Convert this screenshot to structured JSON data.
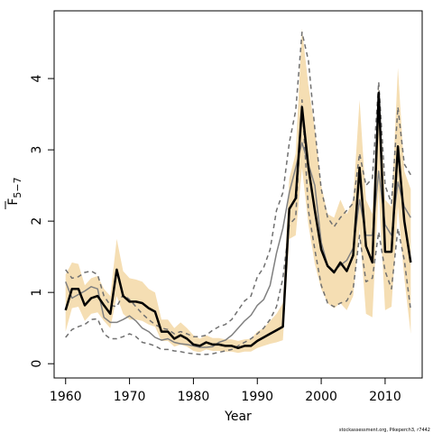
{
  "chart_data": {
    "type": "line",
    "xlabel": "Year",
    "ylabel_main": "F",
    "ylabel_sub": "5−7",
    "credit": "stockassessment.org, Pikeperch3, r7442",
    "xlim": [
      1958.2,
      2015.8
    ],
    "ylim": [
      -0.2,
      4.95
    ],
    "xticks": [
      1960,
      1970,
      1980,
      1990,
      2000,
      2010
    ],
    "yticks": [
      0,
      1,
      2,
      3,
      4
    ],
    "colors": {
      "band": "#f5deb3",
      "estimate": "#000000",
      "reference": "#808080",
      "reference_dashed": "#707070"
    },
    "x": [
      1960,
      1961,
      1962,
      1963,
      1964,
      1965,
      1966,
      1967,
      1968,
      1969,
      1970,
      1971,
      1972,
      1973,
      1974,
      1975,
      1976,
      1977,
      1978,
      1979,
      1980,
      1981,
      1982,
      1983,
      1984,
      1985,
      1986,
      1987,
      1988,
      1989,
      1990,
      1991,
      1992,
      1993,
      1994,
      1995,
      1996,
      1997,
      1998,
      1999,
      2000,
      2001,
      2002,
      2003,
      2004,
      2005,
      2006,
      2007,
      2008,
      2009,
      2010,
      2011,
      2012,
      2013,
      2014
    ],
    "series": [
      {
        "role": "estimate",
        "values": [
          0.75,
          1.05,
          1.05,
          0.82,
          0.92,
          0.95,
          0.82,
          0.7,
          1.32,
          0.95,
          0.87,
          0.87,
          0.85,
          0.78,
          0.73,
          0.45,
          0.45,
          0.35,
          0.4,
          0.35,
          0.27,
          0.25,
          0.3,
          0.27,
          0.27,
          0.25,
          0.25,
          0.22,
          0.25,
          0.25,
          0.32,
          0.37,
          0.42,
          0.47,
          0.52,
          2.17,
          2.32,
          3.6,
          2.75,
          2.15,
          1.6,
          1.37,
          1.28,
          1.42,
          1.3,
          1.52,
          2.75,
          1.65,
          1.42,
          3.8,
          1.57,
          1.57,
          3.05,
          2.0,
          1.42
        ]
      },
      {
        "role": "band_upper",
        "values": [
          1.25,
          1.42,
          1.4,
          1.1,
          1.2,
          1.23,
          1.05,
          0.95,
          1.75,
          1.3,
          1.2,
          1.18,
          1.15,
          1.05,
          1.0,
          0.62,
          0.62,
          0.5,
          0.58,
          0.5,
          0.4,
          0.35,
          0.4,
          0.36,
          0.36,
          0.34,
          0.34,
          0.32,
          0.34,
          0.35,
          0.45,
          0.5,
          0.6,
          0.7,
          0.85,
          2.6,
          2.95,
          4.7,
          3.9,
          3.3,
          2.5,
          2.1,
          2.05,
          2.3,
          2.1,
          2.3,
          3.7,
          2.3,
          2.1,
          3.95,
          2.3,
          2.2,
          4.15,
          2.7,
          2.45
        ]
      },
      {
        "role": "band_lower",
        "values": [
          0.45,
          0.78,
          0.8,
          0.6,
          0.7,
          0.72,
          0.6,
          0.5,
          0.95,
          0.7,
          0.62,
          0.62,
          0.6,
          0.55,
          0.52,
          0.32,
          0.32,
          0.24,
          0.27,
          0.24,
          0.18,
          0.16,
          0.2,
          0.18,
          0.18,
          0.17,
          0.17,
          0.15,
          0.17,
          0.17,
          0.22,
          0.25,
          0.28,
          0.3,
          0.33,
          1.75,
          1.8,
          2.75,
          1.95,
          1.4,
          1.05,
          0.85,
          0.78,
          0.85,
          0.75,
          0.95,
          1.9,
          0.7,
          0.65,
          2.45,
          0.75,
          0.8,
          2.2,
          1.2,
          0.42
        ]
      },
      {
        "role": "reference",
        "values": [
          1.15,
          0.92,
          0.97,
          1.02,
          1.08,
          1.05,
          0.65,
          0.58,
          0.58,
          0.62,
          0.67,
          0.6,
          0.5,
          0.45,
          0.37,
          0.33,
          0.35,
          0.3,
          0.28,
          0.27,
          0.25,
          0.23,
          0.23,
          0.24,
          0.3,
          0.33,
          0.4,
          0.5,
          0.6,
          0.68,
          0.82,
          0.9,
          1.1,
          1.55,
          1.9,
          2.4,
          2.75,
          3.1,
          2.8,
          2.5,
          1.7,
          1.38,
          1.3,
          1.38,
          1.45,
          1.62,
          2.3,
          1.8,
          1.8,
          2.7,
          1.95,
          1.8,
          2.55,
          2.2,
          2.05
        ]
      },
      {
        "role": "reference_dashed_upper",
        "values": [
          1.32,
          1.2,
          1.22,
          1.28,
          1.3,
          1.25,
          0.95,
          0.82,
          0.8,
          0.97,
          0.9,
          0.8,
          0.7,
          0.62,
          0.55,
          0.5,
          0.48,
          0.42,
          0.45,
          0.42,
          0.38,
          0.38,
          0.4,
          0.47,
          0.52,
          0.55,
          0.62,
          0.75,
          0.88,
          0.95,
          1.22,
          1.35,
          1.6,
          2.15,
          2.4,
          3.1,
          3.55,
          4.65,
          4.25,
          3.3,
          2.45,
          2.05,
          1.92,
          2.05,
          2.15,
          2.25,
          2.95,
          2.5,
          2.6,
          3.95,
          2.5,
          2.25,
          3.6,
          2.8,
          2.65
        ]
      },
      {
        "role": "reference_dashed_lower",
        "values": [
          0.37,
          0.48,
          0.52,
          0.55,
          0.62,
          0.63,
          0.42,
          0.35,
          0.35,
          0.38,
          0.42,
          0.38,
          0.3,
          0.28,
          0.25,
          0.2,
          0.2,
          0.18,
          0.17,
          0.15,
          0.14,
          0.13,
          0.13,
          0.14,
          0.16,
          0.18,
          0.2,
          0.25,
          0.3,
          0.35,
          0.42,
          0.5,
          0.62,
          0.8,
          1.2,
          1.95,
          2.05,
          3.7,
          2.15,
          1.6,
          1.1,
          0.85,
          0.8,
          0.85,
          0.88,
          1.05,
          1.8,
          1.15,
          1.2,
          1.85,
          1.3,
          1.05,
          1.9,
          1.45,
          0.75
        ]
      }
    ]
  }
}
